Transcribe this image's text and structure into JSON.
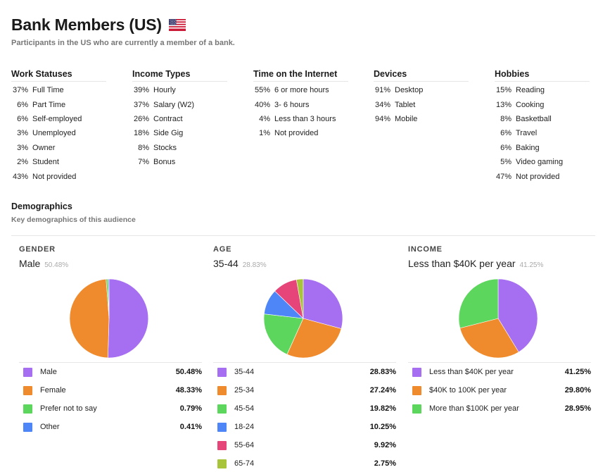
{
  "header": {
    "title": "Bank Members (US)",
    "subtitle": "Participants in the US who are currently a member of a bank."
  },
  "stats": [
    {
      "title": "Work Statuses",
      "rows": [
        {
          "pct": "37%",
          "label": "Full Time"
        },
        {
          "pct": "6%",
          "label": "Part Time"
        },
        {
          "pct": "6%",
          "label": "Self-employed"
        },
        {
          "pct": "3%",
          "label": "Unemployed"
        },
        {
          "pct": "3%",
          "label": "Owner"
        },
        {
          "pct": "2%",
          "label": "Student"
        },
        {
          "pct": "43%",
          "label": "Not provided"
        }
      ]
    },
    {
      "title": "Income Types",
      "rows": [
        {
          "pct": "39%",
          "label": "Hourly"
        },
        {
          "pct": "37%",
          "label": "Salary (W2)"
        },
        {
          "pct": "26%",
          "label": "Contract"
        },
        {
          "pct": "18%",
          "label": "Side Gig"
        },
        {
          "pct": "8%",
          "label": "Stocks"
        },
        {
          "pct": "7%",
          "label": "Bonus"
        }
      ]
    },
    {
      "title": "Time on the Internet",
      "rows": [
        {
          "pct": "55%",
          "label": "6 or more hours"
        },
        {
          "pct": "40%",
          "label": "3- 6 hours"
        },
        {
          "pct": "4%",
          "label": "Less than 3 hours"
        },
        {
          "pct": "1%",
          "label": "Not provided"
        }
      ]
    },
    {
      "title": "Devices",
      "rows": [
        {
          "pct": "91%",
          "label": "Desktop"
        },
        {
          "pct": "34%",
          "label": "Tablet"
        },
        {
          "pct": "94%",
          "label": "Mobile"
        }
      ]
    },
    {
      "title": "Hobbies",
      "rows": [
        {
          "pct": "15%",
          "label": "Reading"
        },
        {
          "pct": "13%",
          "label": "Cooking"
        },
        {
          "pct": "8%",
          "label": "Basketball"
        },
        {
          "pct": "6%",
          "label": "Travel"
        },
        {
          "pct": "6%",
          "label": "Baking"
        },
        {
          "pct": "5%",
          "label": "Video gaming"
        },
        {
          "pct": "47%",
          "label": "Not provided"
        }
      ]
    }
  ],
  "demographics": {
    "title": "Demographics",
    "subtitle": "Key demographics of this audience"
  },
  "colors": {
    "purple": "#a66ef0",
    "orange": "#ef8b2c",
    "green": "#5cd65c",
    "blue": "#4f86f7",
    "pink": "#e6457a",
    "olive": "#a8c43a"
  },
  "chart_data": [
    {
      "type": "pie",
      "title": "GENDER",
      "top_label": "Male",
      "top_pct": "50.48%",
      "categories": [
        "Male",
        "Female",
        "Prefer not to say",
        "Other"
      ],
      "values": [
        50.48,
        48.33,
        0.79,
        0.41
      ],
      "value_labels": [
        "50.48%",
        "48.33%",
        "0.79%",
        "0.41%"
      ],
      "colors": [
        "#a66ef0",
        "#ef8b2c",
        "#5cd65c",
        "#4f86f7"
      ]
    },
    {
      "type": "pie",
      "title": "AGE",
      "top_label": "35-44",
      "top_pct": "28.83%",
      "categories": [
        "35-44",
        "25-34",
        "45-54",
        "18-24",
        "55-64",
        "65-74"
      ],
      "values": [
        28.83,
        27.24,
        19.82,
        10.25,
        9.92,
        2.75
      ],
      "value_labels": [
        "28.83%",
        "27.24%",
        "19.82%",
        "10.25%",
        "9.92%",
        "2.75%"
      ],
      "colors": [
        "#a66ef0",
        "#ef8b2c",
        "#5cd65c",
        "#4f86f7",
        "#e6457a",
        "#a8c43a"
      ]
    },
    {
      "type": "pie",
      "title": "INCOME",
      "top_label": "Less than $40K per year",
      "top_pct": "41.25%",
      "categories": [
        "Less than $40K per year",
        "$40K to 100K per year",
        "More than $100K per year"
      ],
      "values": [
        41.25,
        29.8,
        28.95
      ],
      "value_labels": [
        "41.25%",
        "29.80%",
        "28.95%"
      ],
      "colors": [
        "#a66ef0",
        "#ef8b2c",
        "#5cd65c"
      ]
    }
  ]
}
